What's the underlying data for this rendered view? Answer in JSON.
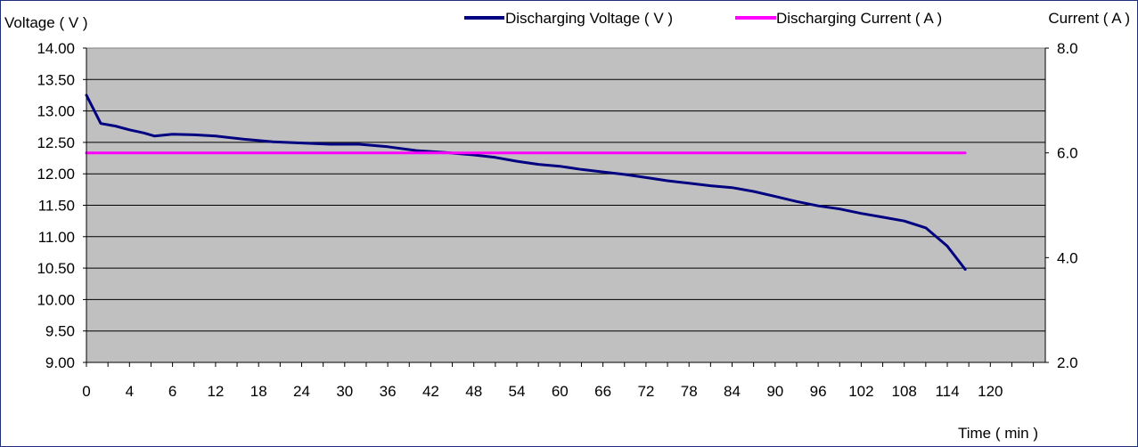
{
  "chart_data": {
    "type": "line",
    "title": "",
    "xlabel": "Time ( min )",
    "ylabel_left": "Voltage ( V )",
    "ylabel_right": "Current ( A )",
    "x_ticks": [
      0,
      4,
      6,
      12,
      18,
      24,
      30,
      36,
      42,
      48,
      54,
      60,
      66,
      72,
      78,
      84,
      90,
      96,
      102,
      108,
      114,
      120
    ],
    "y_left_ticks": [
      "14.00",
      "13.50",
      "13.00",
      "12.50",
      "12.00",
      "11.50",
      "11.00",
      "10.50",
      "10.00",
      "9.50",
      "9.00"
    ],
    "y_right_ticks": [
      "8.0",
      "6.0",
      "4.0",
      "2.0"
    ],
    "ylim_left": [
      9.0,
      14.0
    ],
    "ylim_right": [
      2.0,
      8.0
    ],
    "grid": true,
    "legend_position": "top-center",
    "plot_background": "#c0c0c0",
    "series": [
      {
        "name": "Discharging Voltage ( V )",
        "axis": "left",
        "color": "#000080",
        "points": [
          [
            0,
            13.25
          ],
          [
            2,
            12.8
          ],
          [
            4,
            12.76
          ],
          [
            6,
            12.7
          ],
          [
            8,
            12.65
          ],
          [
            9.5,
            12.6
          ],
          [
            12,
            12.63
          ],
          [
            15,
            12.62
          ],
          [
            18,
            12.6
          ],
          [
            22,
            12.55
          ],
          [
            26,
            12.51
          ],
          [
            30,
            12.49
          ],
          [
            34,
            12.47
          ],
          [
            38,
            12.47
          ],
          [
            42,
            12.43
          ],
          [
            46,
            12.37
          ],
          [
            50,
            12.34
          ],
          [
            54,
            12.3
          ],
          [
            57,
            12.26
          ],
          [
            60,
            12.2
          ],
          [
            63,
            12.15
          ],
          [
            66,
            12.12
          ],
          [
            69,
            12.07
          ],
          [
            72,
            12.03
          ],
          [
            75,
            11.99
          ],
          [
            78,
            11.94
          ],
          [
            81,
            11.89
          ],
          [
            84,
            11.85
          ],
          [
            87,
            11.81
          ],
          [
            90,
            11.78
          ],
          [
            93,
            11.72
          ],
          [
            96,
            11.64
          ],
          [
            99,
            11.56
          ],
          [
            102,
            11.49
          ],
          [
            105,
            11.44
          ],
          [
            108,
            11.37
          ],
          [
            111,
            11.31
          ],
          [
            114,
            11.25
          ],
          [
            117,
            11.14
          ],
          [
            120,
            10.85
          ],
          [
            122.5,
            10.48
          ]
        ]
      },
      {
        "name": "Discharging Current ( A )",
        "axis": "right",
        "color": "#ff00ff",
        "points": [
          [
            0,
            6.0
          ],
          [
            122.5,
            6.0
          ]
        ]
      }
    ]
  }
}
